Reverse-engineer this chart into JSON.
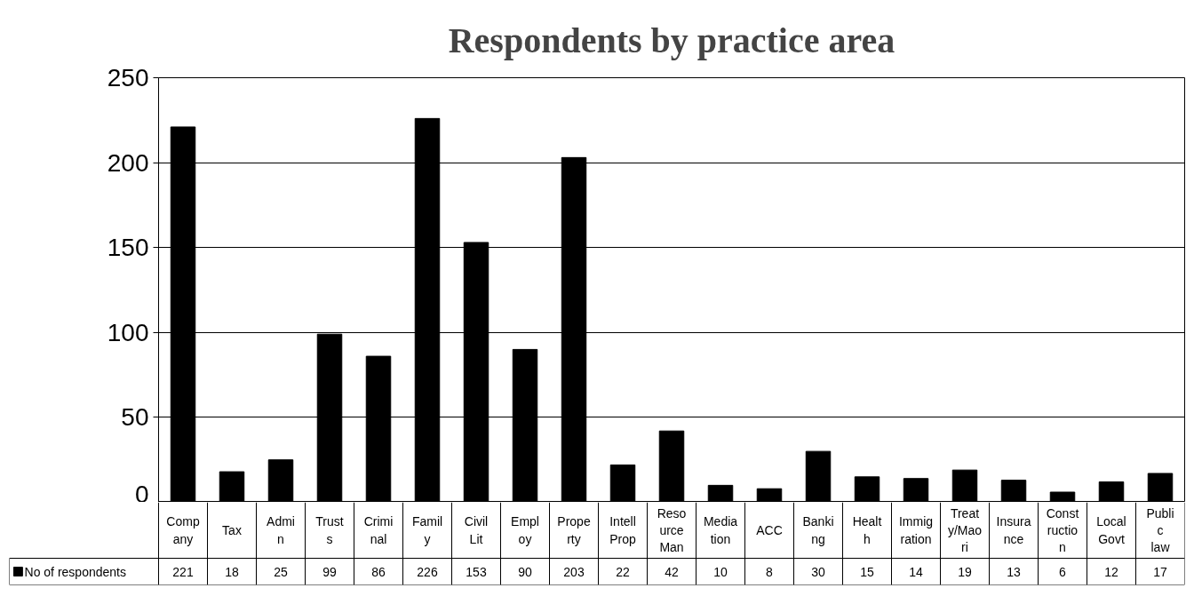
{
  "chart_data": {
    "type": "bar",
    "title": "Respondents by practice area",
    "categories": [
      "Company",
      "Tax",
      "Admin",
      "Trusts",
      "Criminal",
      "Family",
      "Civil Lit",
      "Employ",
      "Property",
      "Intell Prop",
      "Resource Man",
      "Mediation",
      "ACC",
      "Banking",
      "Health",
      "Immigration",
      "Treaty/Maori",
      "Insurance",
      "Construction",
      "Local Govt",
      "Public law"
    ],
    "series": [
      {
        "name": "No of respondents",
        "color": "#000000",
        "values": [
          221,
          18,
          25,
          99,
          86,
          226,
          153,
          90,
          203,
          22,
          42,
          10,
          8,
          30,
          15,
          14,
          19,
          13,
          6,
          12,
          17
        ]
      }
    ],
    "ylim": [
      0,
      250
    ],
    "yticks": [
      0,
      50,
      100,
      150,
      200,
      250
    ],
    "grid": "y",
    "legend": "bottom",
    "data_labels": true,
    "tick_labels": "y"
  }
}
